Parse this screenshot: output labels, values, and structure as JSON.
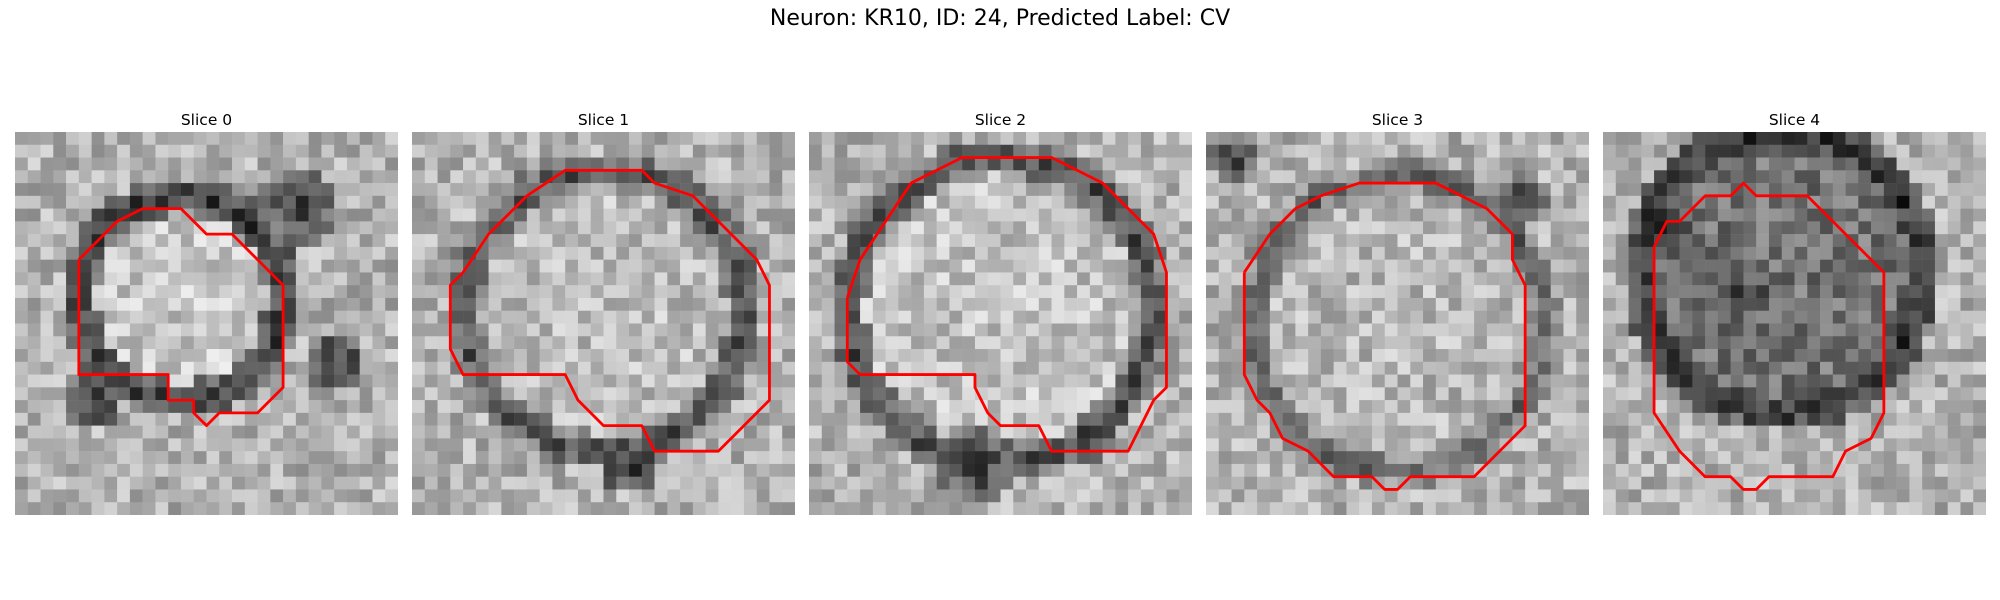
{
  "figure": {
    "title": "Neuron: KR10, ID: 24, Predicted Label: CV"
  },
  "panels": [
    {
      "title": "Slice 0",
      "contour_color": "#ff0000",
      "image": "grayscale-microscopy-crop"
    },
    {
      "title": "Slice 1",
      "contour_color": "#ff0000",
      "image": "grayscale-microscopy-crop"
    },
    {
      "title": "Slice 2",
      "contour_color": "#ff0000",
      "image": "grayscale-microscopy-crop"
    },
    {
      "title": "Slice 3",
      "contour_color": "#ff0000",
      "image": "grayscale-microscopy-crop"
    },
    {
      "title": "Slice 4",
      "contour_color": "#ff0000",
      "image": "grayscale-microscopy-crop"
    }
  ]
}
